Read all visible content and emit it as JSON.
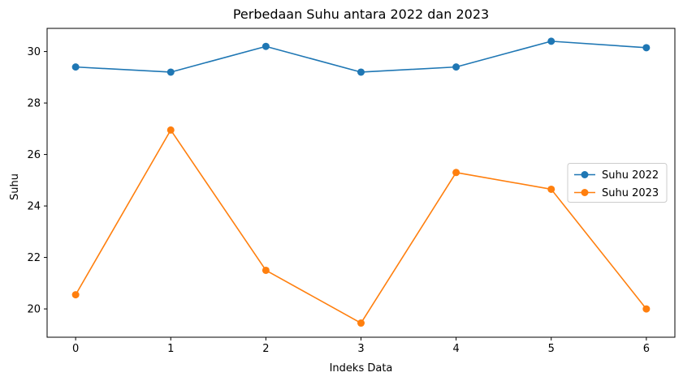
{
  "chart_data": {
    "type": "line",
    "title": "Perbedaan Suhu antara 2022 dan 2023",
    "xlabel": "Indeks Data",
    "ylabel": "Suhu",
    "x": [
      0,
      1,
      2,
      3,
      4,
      5,
      6
    ],
    "xlim": [
      -0.3,
      6.3
    ],
    "ylim": [
      18.9,
      30.9
    ],
    "xticks": [
      "0",
      "1",
      "2",
      "3",
      "4",
      "5",
      "6"
    ],
    "yticks": [
      20,
      22,
      24,
      26,
      28,
      30
    ],
    "grid": false,
    "legend_position": "center-right",
    "series": [
      {
        "name": "Suhu 2022",
        "color": "#1f77b4",
        "marker": "circle",
        "values": [
          29.4,
          29.2,
          30.2,
          29.2,
          29.4,
          30.4,
          30.15
        ]
      },
      {
        "name": "Suhu 2023",
        "color": "#ff7f0e",
        "marker": "circle",
        "values": [
          20.55,
          26.95,
          21.5,
          19.45,
          25.3,
          24.65,
          20.0
        ]
      }
    ]
  }
}
